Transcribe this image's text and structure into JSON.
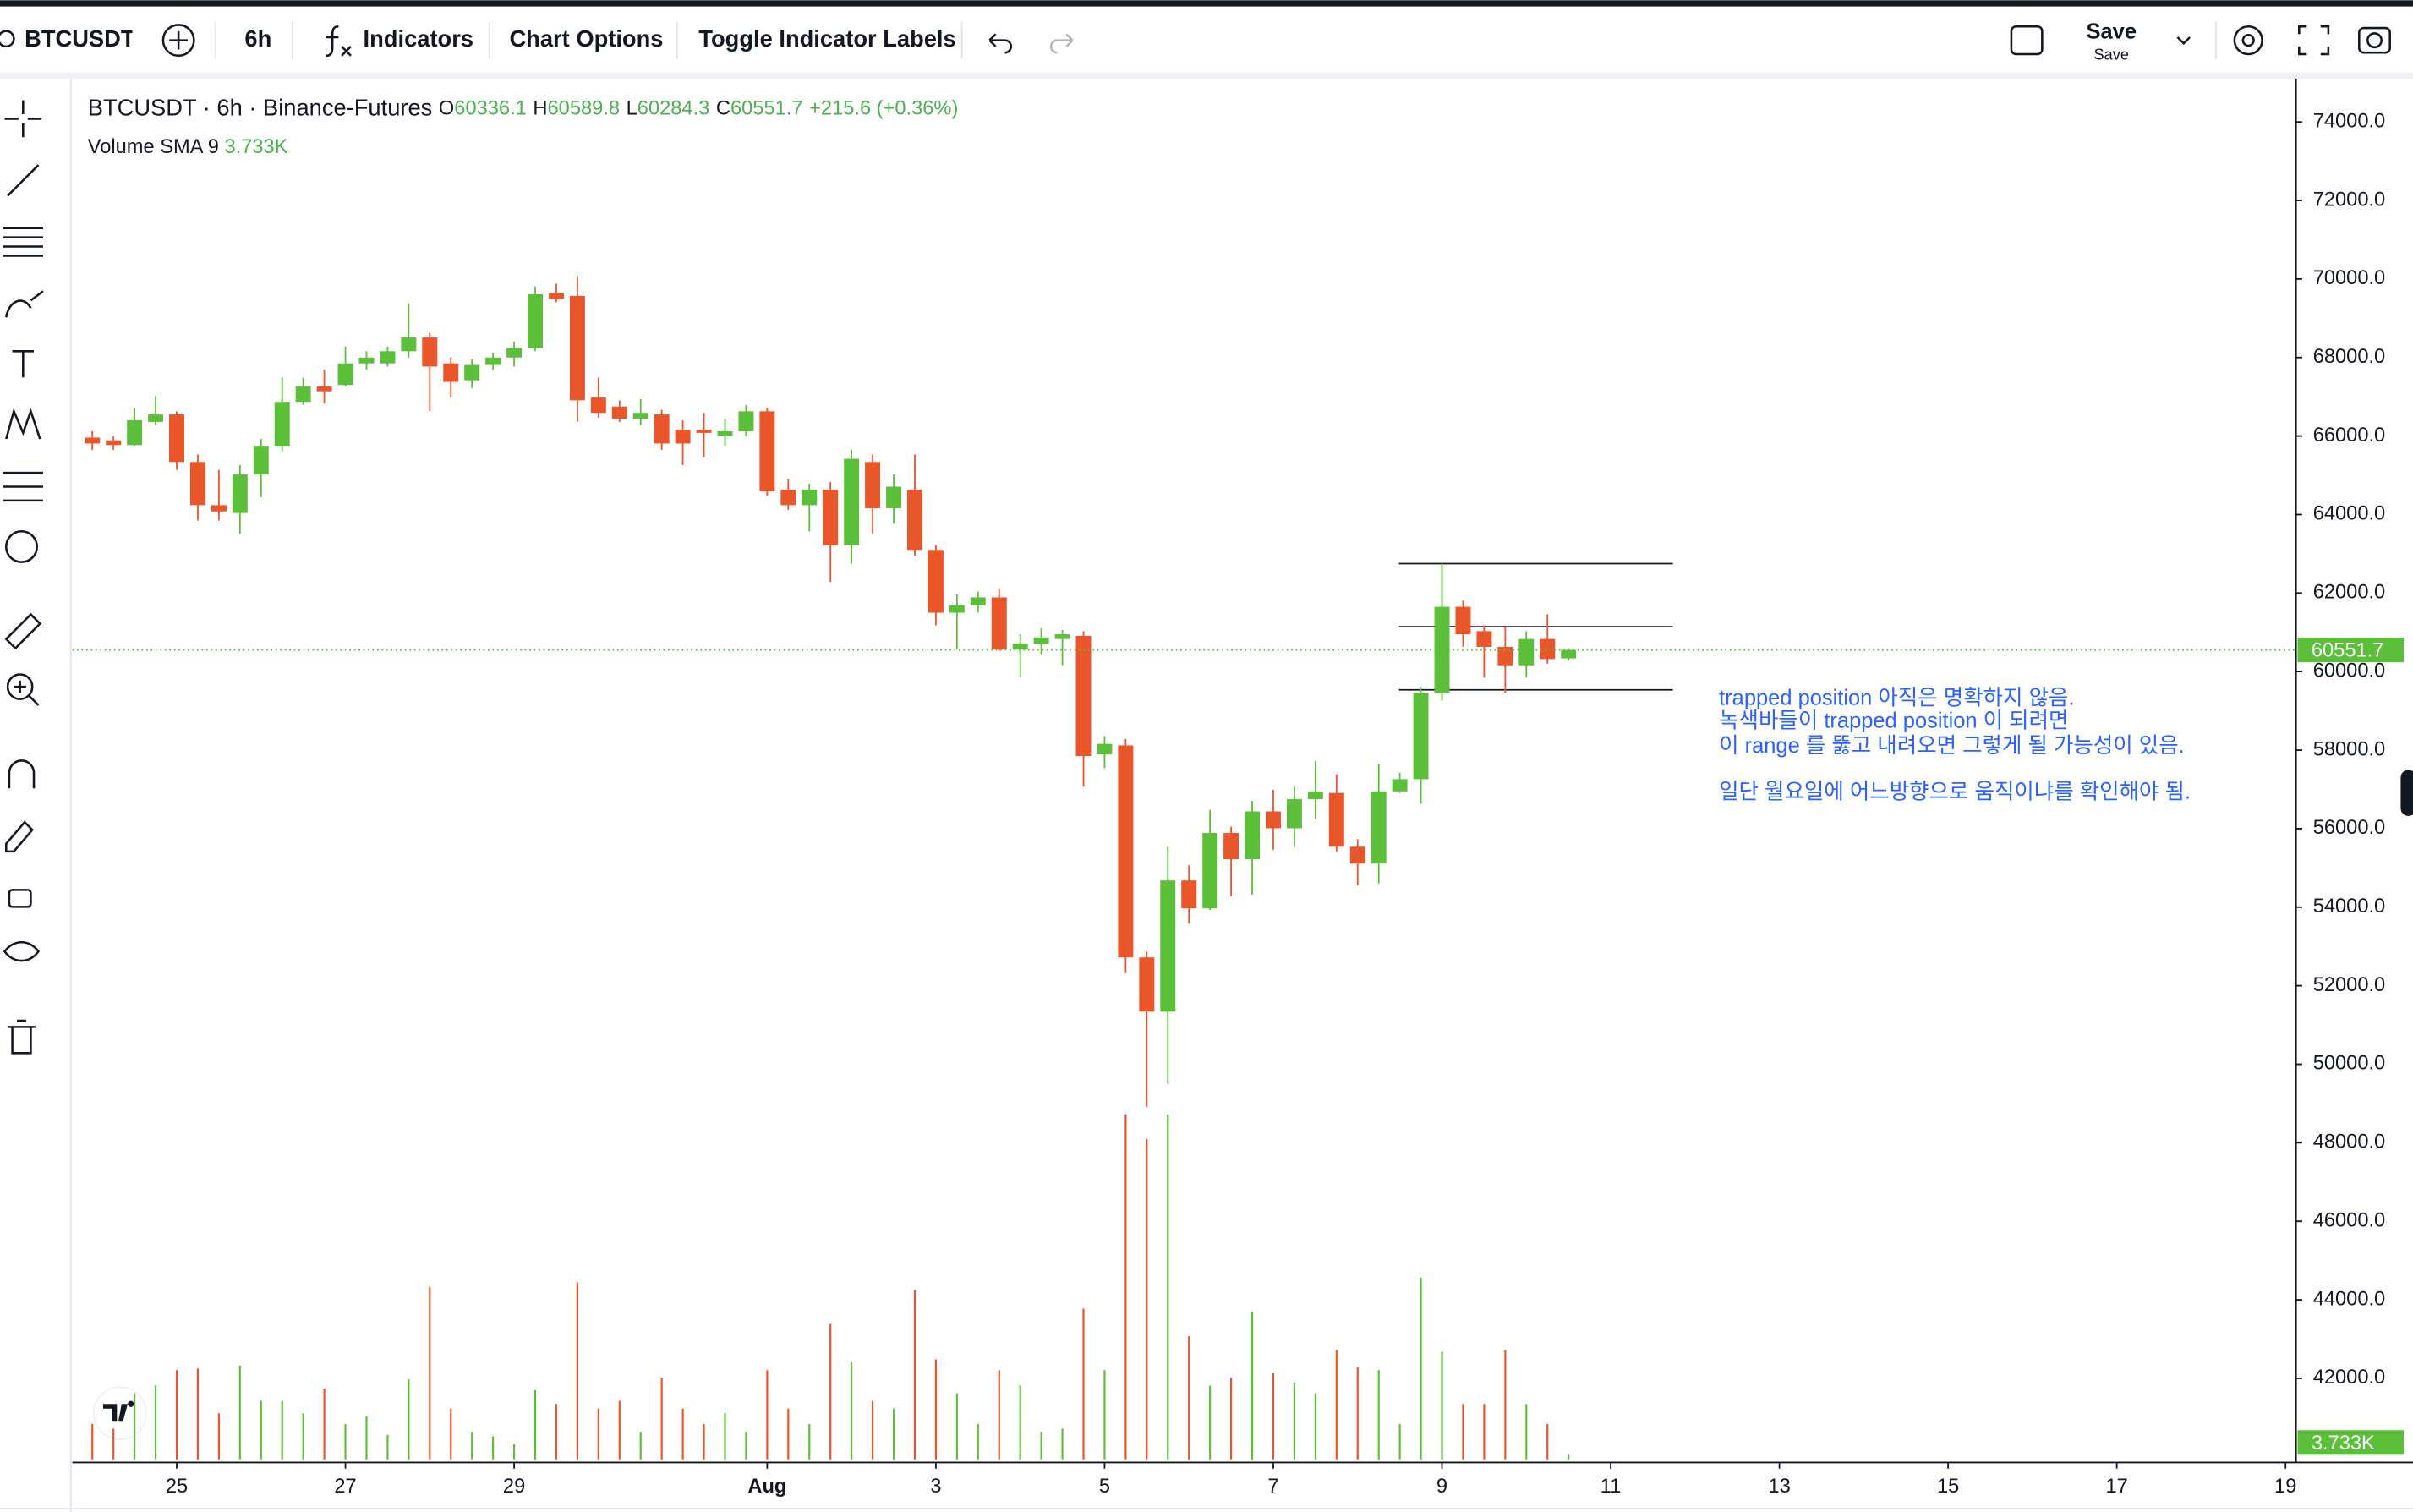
{
  "toolbar": {
    "symbol": "BTCUSDT",
    "interval": "6h",
    "indicators": "Indicators",
    "chart_options": "Chart Options",
    "toggle_labels": "Toggle Indicator Labels",
    "save": "Save",
    "save_sub": "Save"
  },
  "legend": {
    "title": "BTCUSDT · 6h · Binance-Futures",
    "o": "O",
    "h": "H",
    "l": "L",
    "c": "C",
    "change": "+215.6 (+0.36%)",
    "volume": "Volume SMA 9"
  },
  "annotations": [
    "trapped position 아직은 명확하지 않음.",
    "녹색바들이 trapped position 이 되려면",
    "이 range 를 뚫고 내려오면 그렇게 될 가능성이 있음.",
    "일단 월요일에 어느방향으로 움직이냐를 확인해야 됨."
  ],
  "chart_data": {
    "type": "candlestick",
    "up_color": "#5cbf3a",
    "down_color": "#e8562a",
    "open": [
      65960,
      65890,
      65770,
      66360,
      66550,
      65340,
      64240,
      64040,
      65020,
      65730,
      66870,
      67260,
      67300,
      67850,
      67850,
      68160,
      68510,
      67850,
      67420,
      67810,
      68000,
      68240,
      69650,
      69570,
      66980,
      66750,
      66440,
      66550,
      66160,
      66160,
      66000,
      66120,
      66630,
      64630,
      64240,
      64630,
      63220,
      65340,
      64160,
      64630,
      63100,
      61500,
      61690,
      61890,
      60560,
      60710,
      60830,
      60910,
      57890,
      58120,
      52720,
      51340,
      54680,
      53970,
      55890,
      55220,
      56440,
      56010,
      56750,
      56910,
      55540,
      55110,
      56950,
      57260,
      59460,
      61650,
      61030,
      60630,
      60160,
      60830,
      60336.1
    ],
    "high": [
      66120,
      66000,
      66710,
      67020,
      66630,
      65530,
      65140,
      65260,
      65930,
      67490,
      67490,
      67690,
      68280,
      68160,
      68280,
      69380,
      68630,
      68000,
      67960,
      68120,
      68400,
      69810,
      69880,
      70080,
      67490,
      66910,
      66940,
      66670,
      66400,
      66590,
      66440,
      66790,
      66710,
      64910,
      64790,
      64830,
      65650,
      65530,
      65020,
      65530,
      63220,
      61970,
      62040,
      62120,
      60950,
      61100,
      61060,
      61030,
      58360,
      58280,
      52870,
      55540,
      55070,
      56480,
      56050,
      56710,
      56990,
      57070,
      57730,
      57380,
      55730,
      57650,
      57420,
      59610,
      62750,
      61810,
      61180,
      61140,
      61030,
      61460,
      60589.8
    ],
    "low": [
      65650,
      65650,
      65730,
      66280,
      65140,
      63850,
      63850,
      63500,
      64440,
      65610,
      66790,
      66830,
      67260,
      67690,
      67770,
      68000,
      66630,
      66980,
      67220,
      67690,
      67770,
      68160,
      69410,
      66360,
      66470,
      66360,
      66280,
      65650,
      65260,
      65460,
      65730,
      66000,
      64480,
      64120,
      63570,
      62280,
      62750,
      63500,
      63770,
      62950,
      61180,
      60560,
      61500,
      60520,
      59850,
      60440,
      60160,
      57070,
      57540,
      52320,
      48910,
      49500,
      53580,
      53930,
      54280,
      54320,
      55460,
      55540,
      56240,
      55420,
      54560,
      54600,
      56910,
      56640,
      59260,
      60630,
      59850,
      59460,
      59850,
      60200,
      60284.3
    ],
    "close": [
      65810,
      65770,
      66400,
      66550,
      65340,
      64240,
      64080,
      65020,
      65730,
      66870,
      67260,
      67140,
      67850,
      68000,
      68160,
      68510,
      67770,
      67380,
      67810,
      68000,
      68240,
      69610,
      69490,
      66910,
      66590,
      66440,
      66590,
      65810,
      65810,
      66080,
      66120,
      66630,
      64590,
      64240,
      64630,
      63220,
      65420,
      64160,
      64710,
      63100,
      61500,
      61690,
      61890,
      60560,
      60710,
      60870,
      60950,
      57850,
      58160,
      52720,
      51340,
      54680,
      53970,
      55890,
      55220,
      56440,
      56010,
      56750,
      56950,
      55540,
      55110,
      56950,
      57260,
      59460,
      61650,
      60950,
      60630,
      60160,
      60830,
      60320,
      60551.7
    ],
    "volume": [
      28.5,
      24.8,
      53.3,
      59.5,
      71.9,
      73.2,
      37.2,
      75.6,
      47.1,
      47.1,
      37.2,
      57,
      28.5,
      34.7,
      19.8,
      64.5,
      138.9,
      40.9,
      22.3,
      18.6,
      12.4,
      55.8,
      44.6,
      142.6,
      40.9,
      47.1,
      22.3,
      65.7,
      40.9,
      28.5,
      37.2,
      22.3,
      71.9,
      40.9,
      28.5,
      109.1,
      78.1,
      47.1,
      40.9,
      136.4,
      80.6,
      53.3,
      28.5,
      71.9,
      59.5,
      22.3,
      24.8,
      121.5,
      71.9,
      277.8,
      257.9,
      277.8,
      99.2,
      59.5,
      65.7,
      119,
      69.4,
      62,
      53.3,
      88,
      74.4,
      71.9,
      28.5,
      146.3,
      86.8,
      44.6,
      44.6,
      88,
      44.6,
      28.5,
      3.733
    ],
    "volume_last_label": "3.733K",
    "volume_lim": [
      0,
      290
    ],
    "ylim": [
      39935,
      75060
    ],
    "yticks": [
      {
        "value": 42000,
        "label": "42000.0"
      },
      {
        "value": 44000,
        "label": "44000.0"
      },
      {
        "value": 46000,
        "label": "46000.0"
      },
      {
        "value": 48000,
        "label": "48000.0"
      },
      {
        "value": 50000,
        "label": "50000.0"
      },
      {
        "value": 52000,
        "label": "52000.0"
      },
      {
        "value": 54000,
        "label": "54000.0"
      },
      {
        "value": 56000,
        "label": "56000.0"
      },
      {
        "value": 58000,
        "label": "58000.0"
      },
      {
        "value": 60000,
        "label": "60000.0"
      },
      {
        "value": 62000,
        "label": "62000.0"
      },
      {
        "value": 64000,
        "label": "64000.0"
      },
      {
        "value": 66000,
        "label": "66000.0"
      },
      {
        "value": 68000,
        "label": "68000.0"
      },
      {
        "value": 70000,
        "label": "70000.0"
      },
      {
        "value": 72000,
        "label": "72000.0"
      },
      {
        "value": 74000,
        "label": "74000.0"
      }
    ],
    "xlim": [
      -0.95,
      104.5
    ],
    "xticks": [
      {
        "value": 4,
        "label": "25"
      },
      {
        "value": 12,
        "label": "27"
      },
      {
        "value": 20,
        "label": "29"
      },
      {
        "value": 32,
        "label": "Aug"
      },
      {
        "value": 40,
        "label": "3"
      },
      {
        "value": 48,
        "label": "5"
      },
      {
        "value": 56,
        "label": "7"
      },
      {
        "value": 64,
        "label": "9"
      },
      {
        "value": 72,
        "label": "11"
      },
      {
        "value": 80,
        "label": "13"
      },
      {
        "value": 88,
        "label": "15"
      },
      {
        "value": 96,
        "label": "17"
      },
      {
        "value": 104,
        "label": "19"
      }
    ]
  }
}
